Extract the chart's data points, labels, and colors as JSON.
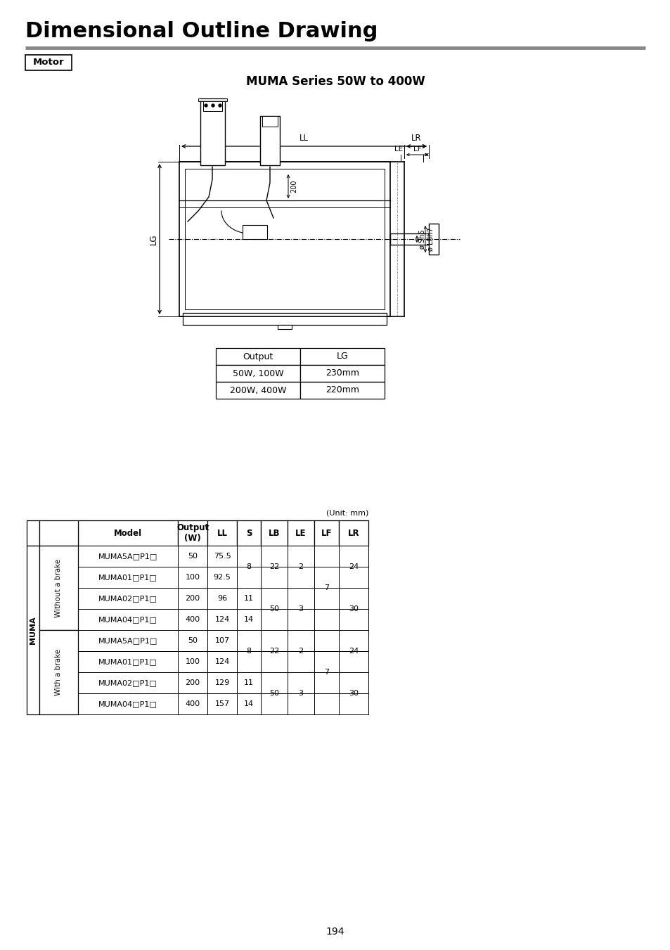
{
  "title": "Dimensional Outline Drawing",
  "section_label": "Motor",
  "subtitle": "MUMA Series 50W to 400W",
  "lg_table": {
    "headers": [
      "Output",
      "LG"
    ],
    "rows": [
      [
        "50W, 100W",
        "230mm"
      ],
      [
        "200W, 400W",
        "220mm"
      ]
    ]
  },
  "main_table": {
    "unit_note": "(Unit: mm)",
    "col_headers": [
      "Model",
      "Output\n(W)",
      "LL",
      "S",
      "LB",
      "LE",
      "LF",
      "LR"
    ],
    "rows": [
      [
        "MUMA5A□P1□",
        "50",
        "75.5",
        "8",
        "22",
        "2",
        "7",
        "24"
      ],
      [
        "MUMA01□P1□",
        "100",
        "92.5",
        "8",
        "22",
        "2",
        "7",
        "24"
      ],
      [
        "MUMA02□P1□",
        "200",
        "96",
        "11",
        "50",
        "3",
        "7",
        "30"
      ],
      [
        "MUMA04□P1□",
        "400",
        "124",
        "14",
        "50",
        "3",
        "7",
        "30"
      ],
      [
        "MUMA5A□P1□",
        "50",
        "107",
        "8",
        "22",
        "2",
        "7",
        "24"
      ],
      [
        "MUMA01□P1□",
        "100",
        "124",
        "8",
        "22",
        "2",
        "7",
        "24"
      ],
      [
        "MUMA02□P1□",
        "200",
        "129",
        "11",
        "50",
        "3",
        "7",
        "30"
      ],
      [
        "MUMA04□P1□",
        "400",
        "157",
        "14",
        "50",
        "3",
        "7",
        "30"
      ]
    ]
  },
  "page_number": "194",
  "bg_color": "#ffffff",
  "text_color": "#000000"
}
